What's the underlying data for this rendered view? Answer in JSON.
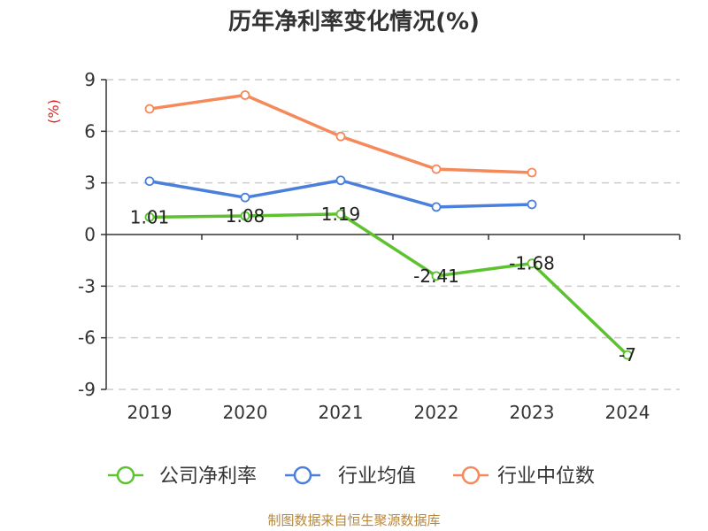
{
  "chart_data": {
    "type": "line",
    "title": "历年净利率变化情况(%)",
    "ylabel": "(%)",
    "categories": [
      "2019",
      "2020",
      "2021",
      "2022",
      "2023",
      "2024"
    ],
    "ylim": [
      -9,
      9
    ],
    "yticks": [
      9,
      6,
      3,
      0,
      -3,
      -6,
      -9
    ],
    "grid": true,
    "legend_position": "bottom",
    "series": [
      {
        "name": "公司净利率",
        "color": "#5cc22f",
        "values": [
          1.01,
          1.08,
          1.19,
          -2.41,
          -1.68,
          -7
        ],
        "labels": [
          "1.01",
          "1.08",
          "1.19",
          "-2.41",
          "-1.68",
          "-7"
        ]
      },
      {
        "name": "行业均值",
        "color": "#4a7fdc",
        "values": [
          3.1,
          2.15,
          3.15,
          1.6,
          1.75,
          null
        ]
      },
      {
        "name": "行业中位数",
        "color": "#f5895a",
        "values": [
          7.3,
          8.1,
          5.7,
          3.8,
          3.6,
          null
        ]
      }
    ]
  },
  "footer": {
    "source": "制图数据来自恒生聚源数据库"
  }
}
